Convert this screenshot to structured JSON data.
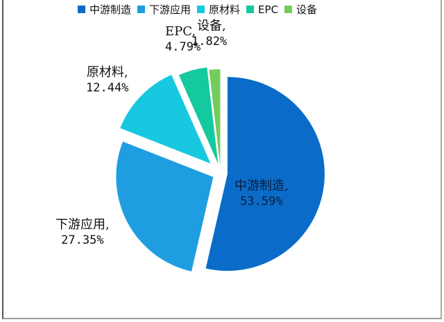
{
  "chart_data": {
    "type": "pie",
    "title": "",
    "legend_position": "top",
    "categories": [
      "中游制造",
      "下游应用",
      "原材料",
      "EPC",
      "设备"
    ],
    "values": [
      53.59,
      27.35,
      12.44,
      4.79,
      1.82
    ],
    "unit": "%",
    "colors": [
      "#0a6cc8",
      "#1e9ee0",
      "#17c8e0",
      "#14c99e",
      "#74cd5a"
    ],
    "exploded": true,
    "data_labels": [
      {
        "name": "中游制造,",
        "value": "53.59%"
      },
      {
        "name": "下游应用,",
        "value": "27.35%"
      },
      {
        "name": "原材料,",
        "value": "12.44%"
      },
      {
        "name": "EPC,",
        "value": "4.79%"
      },
      {
        "name": "设备,",
        "value": "1.82%"
      }
    ]
  },
  "legend": [
    {
      "label": "中游制造",
      "color": "#0a6cc8"
    },
    {
      "label": "下游应用",
      "color": "#1e9ee0"
    },
    {
      "label": "原材料",
      "color": "#17c8e0"
    },
    {
      "label": "EPC",
      "color": "#14c99e"
    },
    {
      "label": "设备",
      "color": "#74cd5a"
    }
  ]
}
